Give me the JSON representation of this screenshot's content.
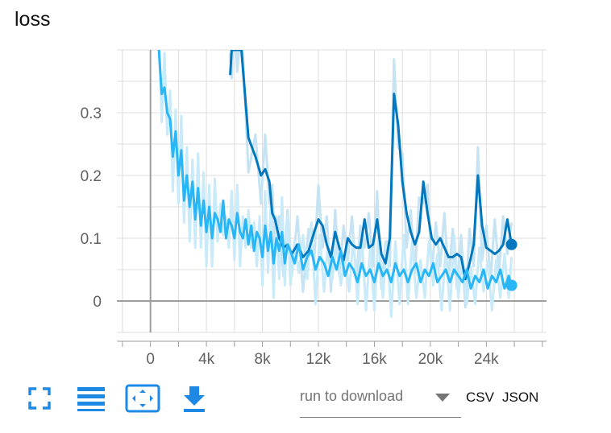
{
  "card": {
    "title": "loss"
  },
  "toolbar": {
    "icons": [
      "fullscreen-icon",
      "list-icon",
      "fit-domain-icon",
      "download-icon"
    ],
    "accent_color": "#1e88e5"
  },
  "download": {
    "placeholder": "run to download",
    "formats": [
      "CSV",
      "JSON"
    ]
  },
  "chart_data": {
    "type": "line",
    "title": "",
    "xlabel": "",
    "ylabel": "",
    "xlim": [
      -2400,
      28300
    ],
    "ylim": [
      -0.05,
      0.4
    ],
    "x_ticks": [
      0,
      4000,
      8000,
      12000,
      16000,
      20000,
      24000
    ],
    "x_tick_labels": [
      "0",
      "4k",
      "8k",
      "12k",
      "16k",
      "20k",
      "24k"
    ],
    "y_ticks": [
      0,
      0.1,
      0.2,
      0.3
    ],
    "y_tick_labels": [
      "0",
      "0.1",
      "0.2",
      "0.3"
    ],
    "grid": true,
    "series": [
      {
        "color": "#0277bd",
        "raw_color": "#c5e3f3",
        "x": [
          5700,
          5800,
          6000,
          6200,
          6500,
          7000,
          7500,
          7900,
          8200,
          8500,
          8700,
          8900,
          9200,
          9500,
          9800,
          10100,
          10500,
          10900,
          11300,
          11700,
          12000,
          12300,
          12600,
          12900,
          13200,
          13500,
          13800,
          14100,
          14400,
          14700,
          15000,
          15300,
          15600,
          15900,
          16200,
          16500,
          16800,
          17100,
          17400,
          17700,
          18000,
          18300,
          18600,
          18900,
          19200,
          19500,
          19800,
          20100,
          20400,
          20700,
          21000,
          21300,
          21600,
          21900,
          22200,
          22500,
          22800,
          23100,
          23400,
          23700,
          24000,
          24300,
          24600,
          24900,
          25200,
          25500,
          25800
        ],
        "values": [
          0.36,
          0.4,
          0.4,
          0.4,
          0.4,
          0.26,
          0.23,
          0.2,
          0.21,
          0.19,
          0.14,
          0.13,
          0.1,
          0.085,
          0.09,
          0.075,
          0.09,
          0.07,
          0.08,
          0.11,
          0.13,
          0.12,
          0.09,
          0.07,
          0.11,
          0.085,
          0.065,
          0.1,
          0.09,
          0.085,
          0.085,
          0.13,
          0.085,
          0.09,
          0.13,
          0.075,
          0.06,
          0.1,
          0.33,
          0.28,
          0.19,
          0.14,
          0.11,
          0.09,
          0.11,
          0.19,
          0.14,
          0.1,
          0.09,
          0.1,
          0.085,
          0.07,
          0.07,
          0.075,
          0.07,
          0.035,
          0.06,
          0.09,
          0.2,
          0.12,
          0.085,
          0.08,
          0.075,
          0.08,
          0.09,
          0.13,
          0.09
        ],
        "final_value": 0.09
      },
      {
        "color": "#29b6f6",
        "raw_color": "#c9eaf8",
        "x": [
          600,
          800,
          1000,
          1200,
          1400,
          1600,
          1800,
          2000,
          2200,
          2400,
          2600,
          2800,
          3000,
          3200,
          3400,
          3600,
          3800,
          4000,
          4200,
          4400,
          4600,
          4800,
          5000,
          5200,
          5400,
          5600,
          5800,
          6000,
          6200,
          6400,
          6600,
          6800,
          7000,
          7200,
          7400,
          7600,
          7800,
          8000,
          8200,
          8400,
          8600,
          8800,
          9000,
          9200,
          9400,
          9600,
          9800,
          10000,
          10300,
          10600,
          10900,
          11200,
          11500,
          11800,
          12100,
          12400,
          12700,
          13000,
          13300,
          13600,
          13900,
          14200,
          14500,
          14800,
          15100,
          15400,
          15700,
          16000,
          16300,
          16600,
          16900,
          17200,
          17500,
          17800,
          18100,
          18400,
          18700,
          19000,
          19300,
          19600,
          19900,
          20200,
          20500,
          20800,
          21100,
          21400,
          21700,
          22000,
          22300,
          22600,
          22900,
          23200,
          23500,
          23800,
          24100,
          24400,
          24700,
          25000,
          25300,
          25600,
          25800
        ],
        "values": [
          0.4,
          0.33,
          0.34,
          0.3,
          0.29,
          0.23,
          0.27,
          0.2,
          0.24,
          0.16,
          0.2,
          0.15,
          0.19,
          0.13,
          0.18,
          0.12,
          0.16,
          0.11,
          0.15,
          0.1,
          0.14,
          0.13,
          0.11,
          0.16,
          0.1,
          0.13,
          0.12,
          0.1,
          0.14,
          0.11,
          0.1,
          0.13,
          0.09,
          0.12,
          0.08,
          0.11,
          0.1,
          0.07,
          0.12,
          0.08,
          0.11,
          0.06,
          0.1,
          0.08,
          0.11,
          0.06,
          0.09,
          0.08,
          0.06,
          0.09,
          0.05,
          0.07,
          0.08,
          0.05,
          0.07,
          0.06,
          0.04,
          0.07,
          0.05,
          0.08,
          0.04,
          0.06,
          0.05,
          0.03,
          0.06,
          0.04,
          0.05,
          0.03,
          0.06,
          0.04,
          0.05,
          0.03,
          0.06,
          0.04,
          0.05,
          0.03,
          0.05,
          0.06,
          0.03,
          0.05,
          0.04,
          0.06,
          0.03,
          0.04,
          0.05,
          0.03,
          0.05,
          0.04,
          0.03,
          0.05,
          0.02,
          0.04,
          0.03,
          0.05,
          0.02,
          0.04,
          0.03,
          0.05,
          0.02,
          0.04,
          0.025
        ],
        "final_value": 0.025
      }
    ]
  }
}
